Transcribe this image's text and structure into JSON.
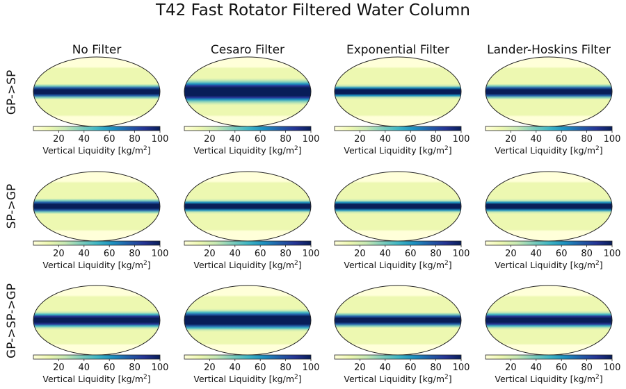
{
  "figure": {
    "title": "T42 Fast Rotator Filtered Water Column"
  },
  "columns": [
    "No Filter",
    "Cesaro Filter",
    "Exponential Filter",
    "Lander-Hoskins Filter"
  ],
  "rows": [
    "GP->SP",
    "SP->GP",
    "GP->SP->GP"
  ],
  "colorbar": {
    "label": "Vertical Liquidity [kg/m",
    "label_sup": "2",
    "label_close": "]",
    "ticks": [
      "20",
      "40",
      "60",
      "80",
      "100"
    ],
    "range": [
      0,
      100
    ],
    "colormap": "YlGnBu",
    "colors": [
      "#ffffd9",
      "#edf8b1",
      "#c7e9b4",
      "#7fcdbb",
      "#41b6c4",
      "#1d91c0",
      "#225ea8",
      "#253494",
      "#081d58"
    ]
  },
  "chart_data": {
    "type": "heatmap",
    "projection": "mollweide",
    "title": "T42 Fast Rotator Filtered Water Column",
    "variable": "Vertical Liquidity",
    "units": "kg/m^2",
    "range": [
      0,
      100
    ],
    "columns": [
      "No Filter",
      "Cesaro Filter",
      "Exponential Filter",
      "Lander-Hoskins Filter"
    ],
    "rows": [
      "GP->SP",
      "SP->GP",
      "GP->SP->GP"
    ],
    "equatorial_band": [
      [
        {
          "peak": 100,
          "band_halfwidth_deg": 9
        },
        {
          "peak": 100,
          "band_halfwidth_deg": 16
        },
        {
          "peak": 100,
          "band_halfwidth_deg": 8
        },
        {
          "peak": 100,
          "band_halfwidth_deg": 9
        }
      ],
      [
        {
          "peak": 100,
          "band_halfwidth_deg": 9
        },
        {
          "peak": 100,
          "band_halfwidth_deg": 8
        },
        {
          "peak": 100,
          "band_halfwidth_deg": 8
        },
        {
          "peak": 100,
          "band_halfwidth_deg": 8
        }
      ],
      [
        {
          "peak": 100,
          "band_halfwidth_deg": 10
        },
        {
          "peak": 100,
          "band_halfwidth_deg": 14
        },
        {
          "peak": 100,
          "band_halfwidth_deg": 9
        },
        {
          "peak": 100,
          "band_halfwidth_deg": 10
        }
      ]
    ],
    "background_level": 8
  }
}
